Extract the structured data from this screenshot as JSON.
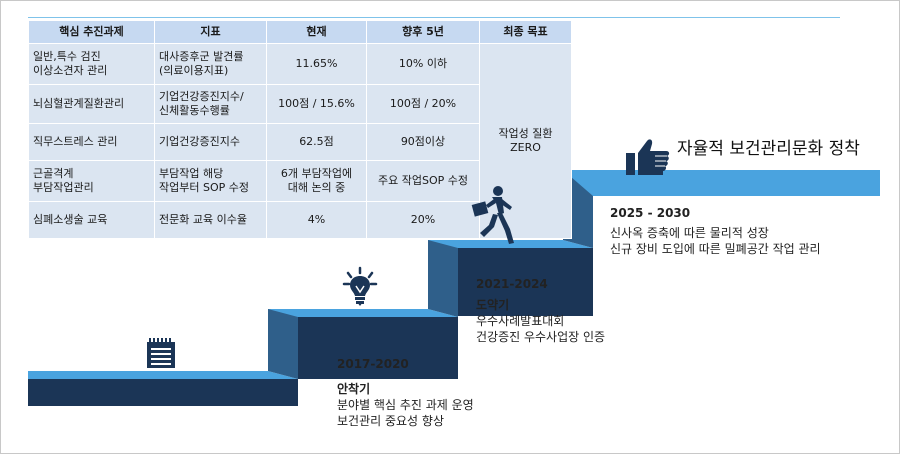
{
  "table": {
    "headers": [
      "핵심 추진과제",
      "지표",
      "현재",
      "향후 5년",
      "최종 목표"
    ],
    "rows": [
      {
        "task": "일반,특수 검진\n이상소견자 관리",
        "indicator": "대사증후군 발견률\n(의료이용지표)",
        "current": "11.65%",
        "future": "10% 이하"
      },
      {
        "task": "뇌심혈관계질환관리",
        "indicator": "기업건강증진지수/\n신체활동수행률",
        "current": "100점 / 15.6%",
        "future": "100점 / 20%"
      },
      {
        "task": "직무스트레스 관리",
        "indicator": "기업건강증진지수",
        "current": "62.5점",
        "future": "90점이상"
      },
      {
        "task": "근골격계\n부담작업관리",
        "indicator": "부담작업 해당\n작업부터 SOP 수정",
        "current": "6개 부담작업에\n대해 논의 중",
        "future": "주요 작업SOP 수정"
      },
      {
        "task": "심폐소생술 교육",
        "indicator": "전문화 교육 이수율",
        "current": "4%",
        "future": "20%"
      }
    ],
    "final_goal": "작업성 질환\nZERO"
  },
  "stages": [
    {
      "period": "2017-2020",
      "phase": "안착기",
      "items": [
        "분야별 핵심 추진 과제 운영",
        "보건관리 중요성 향상"
      ]
    },
    {
      "period": "2021-2024",
      "phase": "도약기",
      "items": [
        "우수사례발표대회",
        "건강증진 우수사업장 인증"
      ]
    },
    {
      "period": "2025 - 2030",
      "phase": "",
      "items": [
        "신사옥 증축에 따른 물리적 성장",
        "신규 장비 도입에 따른 밀폐공간 작업 관리"
      ]
    }
  ],
  "goal_title": "자율적 보건관리문화 정착",
  "icons": [
    "notepad-icon",
    "lightbulb-icon",
    "runner-icon",
    "thumbs-up-icon"
  ],
  "colors": {
    "step_top": "#4aa3df",
    "step_dark": "#1b3556",
    "step_mid": "#2f5f8a",
    "table_header": "#c6d9f1",
    "table_cell": "#dbe5f1"
  }
}
